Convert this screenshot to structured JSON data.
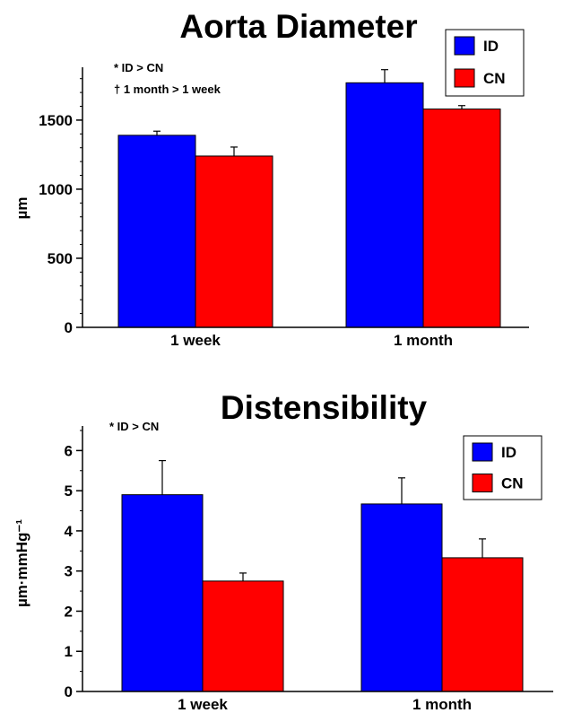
{
  "chart_data": [
    {
      "type": "bar",
      "title": "Aorta Diameter",
      "ylabel": "µm",
      "xlabel": "",
      "categories": [
        "1 week",
        "1 month"
      ],
      "ylim": [
        0,
        1850
      ],
      "yticks": [
        0,
        500,
        1000,
        1500
      ],
      "series": [
        {
          "name": "ID",
          "color": "#0000ff",
          "values": [
            1390,
            1770
          ],
          "errors": [
            30,
            95
          ]
        },
        {
          "name": "CN",
          "color": "#ff0000",
          "values": [
            1240,
            1580
          ],
          "errors": [
            65,
            25
          ]
        }
      ],
      "annotations": [
        "* ID > CN",
        "† 1 month > 1 week"
      ],
      "legend": "top-right",
      "grid": false
    },
    {
      "type": "bar",
      "title": "Distensibility",
      "ylabel": "µm·mmHg⁻¹",
      "xlabel": "",
      "categories": [
        "1 week",
        "1 month"
      ],
      "ylim": [
        0,
        6.5
      ],
      "yticks": [
        0,
        1,
        2,
        3,
        4,
        5,
        6
      ],
      "series": [
        {
          "name": "ID",
          "color": "#0000ff",
          "values": [
            4.9,
            4.67
          ],
          "errors": [
            0.85,
            0.65
          ]
        },
        {
          "name": "CN",
          "color": "#ff0000",
          "values": [
            2.75,
            3.33
          ],
          "errors": [
            0.2,
            0.47
          ]
        }
      ],
      "annotations": [
        "* ID > CN"
      ],
      "legend": "top-right",
      "grid": false
    }
  ]
}
